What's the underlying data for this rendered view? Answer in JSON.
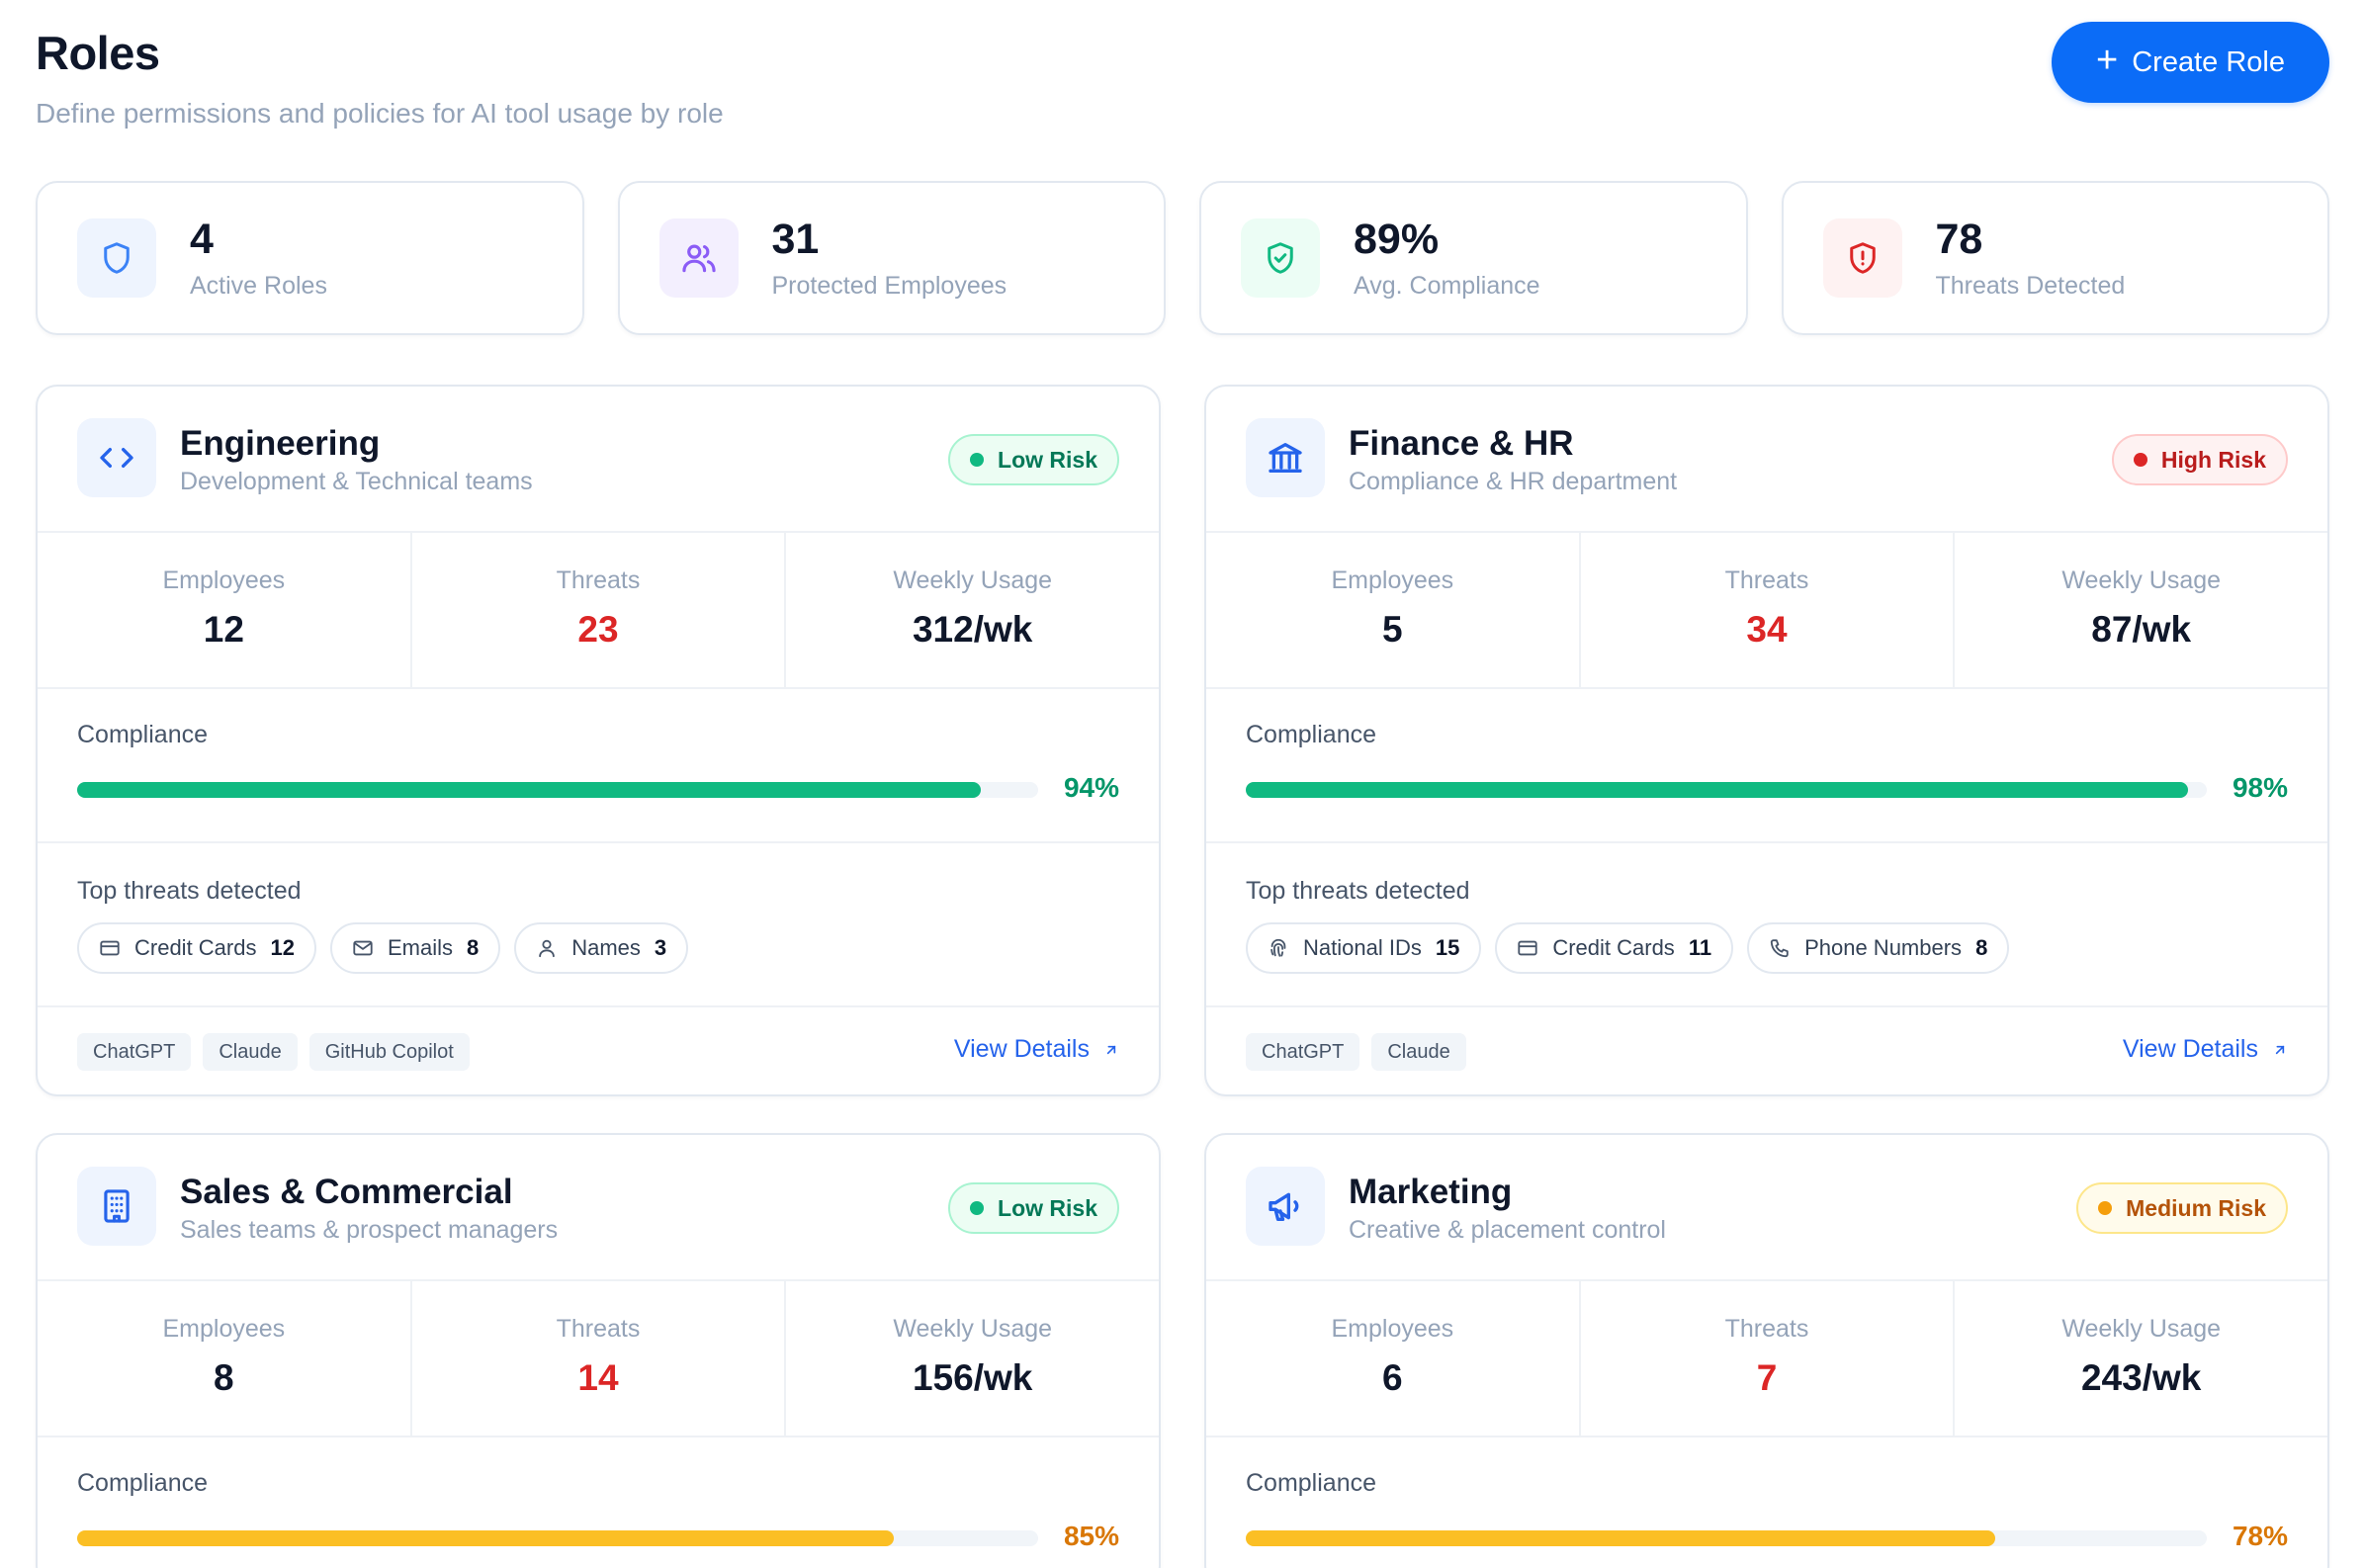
{
  "header": {
    "title": "Roles",
    "subtitle": "Define permissions and policies for AI tool usage by role",
    "create_label": "Create Role"
  },
  "stats": [
    {
      "value": "4",
      "label": "Active Roles",
      "icon": "shield-icon",
      "color": "#3b82f6"
    },
    {
      "value": "31",
      "label": "Protected Employees",
      "icon": "users-icon",
      "color": "#8b5cf6"
    },
    {
      "value": "89%",
      "label": "Avg. Compliance",
      "icon": "shield-check-icon",
      "color": "#10b981"
    },
    {
      "value": "78",
      "label": "Threats Detected",
      "icon": "shield-alert-icon",
      "color": "#dc2626"
    }
  ],
  "metric_labels": {
    "employees": "Employees",
    "threats": "Threats",
    "weekly_usage": "Weekly Usage"
  },
  "section_labels": {
    "compliance": "Compliance",
    "top_threats": "Top threats detected",
    "view_details": "View Details"
  },
  "roles": [
    {
      "name": "Engineering",
      "description": "Development & Technical teams",
      "icon": "code-icon",
      "risk": "Low Risk",
      "employees": "12",
      "threats": "23",
      "weekly_usage": "312/wk",
      "compliance": "94%",
      "compliance_value": 94,
      "compliance_color": "#10b981",
      "compliance_text_color": "#059669",
      "top_threats": [
        {
          "label": "Credit Cards",
          "count": "12",
          "icon": "credit-card-icon"
        },
        {
          "label": "Emails",
          "count": "8",
          "icon": "mail-icon"
        },
        {
          "label": "Names",
          "count": "3",
          "icon": "user-icon"
        }
      ],
      "tools": [
        "ChatGPT",
        "Claude",
        "GitHub Copilot"
      ]
    },
    {
      "name": "Finance & HR",
      "description": "Compliance & HR department",
      "icon": "bank-icon",
      "risk": "High Risk",
      "employees": "5",
      "threats": "34",
      "weekly_usage": "87/wk",
      "compliance": "98%",
      "compliance_value": 98,
      "compliance_color": "#10b981",
      "compliance_text_color": "#059669",
      "top_threats": [
        {
          "label": "National IDs",
          "count": "15",
          "icon": "fingerprint-icon"
        },
        {
          "label": "Credit Cards",
          "count": "11",
          "icon": "credit-card-icon"
        },
        {
          "label": "Phone Numbers",
          "count": "8",
          "icon": "phone-icon"
        }
      ],
      "tools": [
        "ChatGPT",
        "Claude"
      ]
    },
    {
      "name": "Sales & Commercial",
      "description": "Sales teams & prospect managers",
      "icon": "building-icon",
      "risk": "Low Risk",
      "employees": "8",
      "threats": "14",
      "weekly_usage": "156/wk",
      "compliance": "85%",
      "compliance_value": 85,
      "compliance_color": "#fbbf24",
      "compliance_text_color": "#d97706"
    },
    {
      "name": "Marketing",
      "description": "Creative & placement control",
      "icon": "megaphone-icon",
      "risk": "Medium Risk",
      "employees": "6",
      "threats": "7",
      "weekly_usage": "243/wk",
      "compliance": "78%",
      "compliance_value": 78,
      "compliance_color": "#fbbf24",
      "compliance_text_color": "#d97706"
    }
  ]
}
